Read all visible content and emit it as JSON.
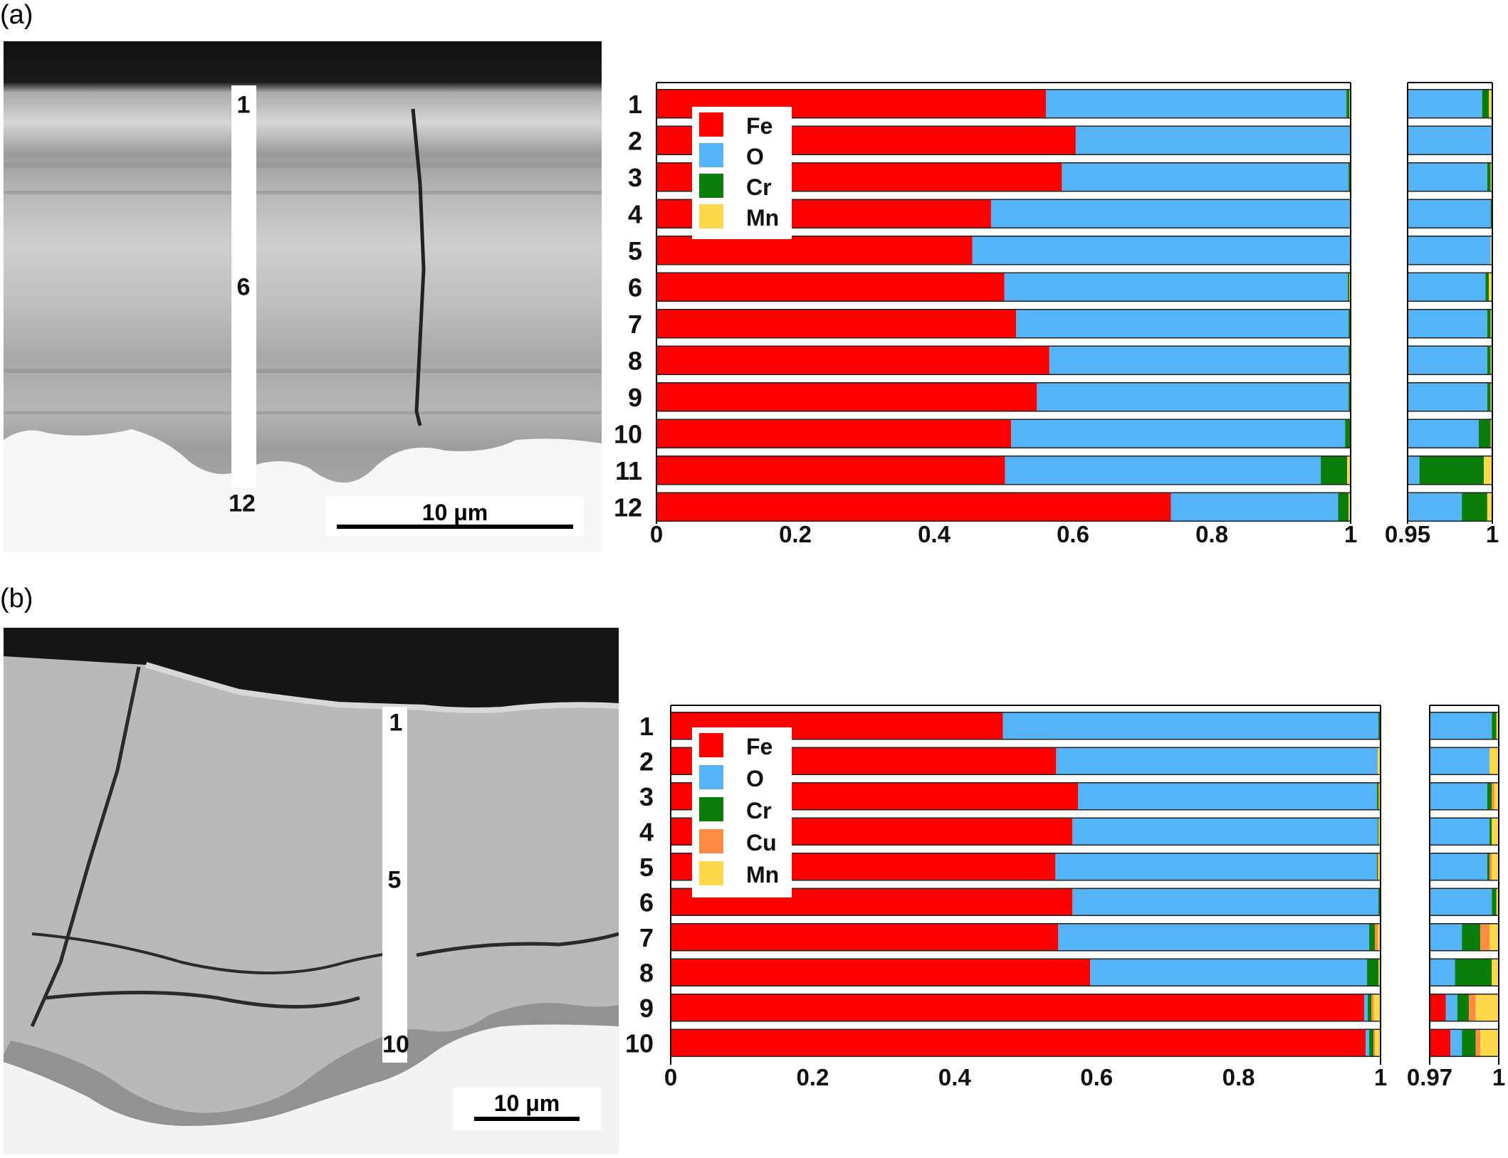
{
  "panels": {
    "a": {
      "label": "(a)",
      "strip_labels": [
        "1",
        "6",
        "12"
      ],
      "scale_label": "10 μm"
    },
    "b": {
      "label": "(b)",
      "strip_labels": [
        "1",
        "5",
        "10"
      ],
      "scale_label": "10 μm"
    }
  },
  "colors": {
    "Fe": "#ff0000",
    "O": "#55b3f7",
    "Cr": "#0a7d0a",
    "Cu": "#ff8c42",
    "Mn": "#fdd84a"
  },
  "chart_data": [
    {
      "type": "bar",
      "orientation": "horizontal",
      "stacked": true,
      "panel": "a",
      "categories": [
        "1",
        "2",
        "3",
        "4",
        "5",
        "6",
        "7",
        "8",
        "9",
        "10",
        "11",
        "12"
      ],
      "series": [
        {
          "name": "Fe",
          "values": [
            0.561,
            0.604,
            0.584,
            0.482,
            0.455,
            0.501,
            0.518,
            0.566,
            0.548,
            0.511,
            0.502,
            0.741
          ]
        },
        {
          "name": "O",
          "values": [
            0.433,
            0.396,
            0.413,
            0.517,
            0.544,
            0.495,
            0.479,
            0.431,
            0.449,
            0.481,
            0.455,
            0.241
          ]
        },
        {
          "name": "Cr",
          "values": [
            0.004,
            0.0,
            0.002,
            0.001,
            0.0,
            0.002,
            0.002,
            0.002,
            0.002,
            0.007,
            0.038,
            0.015
          ]
        },
        {
          "name": "Mn",
          "values": [
            0.002,
            0.0,
            0.001,
            0.0,
            0.001,
            0.002,
            0.001,
            0.001,
            0.001,
            0.001,
            0.005,
            0.003
          ]
        }
      ],
      "xlim": [
        0,
        1
      ],
      "xticks": [
        "0",
        "0.2",
        "0.4",
        "0.6",
        "0.8",
        "1"
      ],
      "inset": {
        "xlim": [
          0.95,
          1
        ],
        "xticks": [
          "0.95",
          "1"
        ]
      },
      "legend": {
        "placement": "top-left",
        "entries": [
          "Fe",
          "O",
          "Cr",
          "Mn"
        ]
      }
    },
    {
      "type": "bar",
      "orientation": "horizontal",
      "stacked": true,
      "panel": "b",
      "categories": [
        "1",
        "2",
        "3",
        "4",
        "5",
        "6",
        "7",
        "8",
        "9",
        "10"
      ],
      "series": [
        {
          "name": "Fe",
          "values": [
            0.468,
            0.543,
            0.574,
            0.566,
            0.542,
            0.566,
            0.546,
            0.591,
            0.977,
            0.979
          ]
        },
        {
          "name": "O",
          "values": [
            0.529,
            0.453,
            0.421,
            0.43,
            0.453,
            0.431,
            0.438,
            0.39,
            0.005,
            0.005
          ]
        },
        {
          "name": "Cr",
          "values": [
            0.002,
            0.0,
            0.002,
            0.001,
            0.001,
            0.002,
            0.008,
            0.016,
            0.005,
            0.006
          ]
        },
        {
          "name": "Cu",
          "values": [
            0.0,
            0.0,
            0.001,
            0.0,
            0.001,
            0.0,
            0.004,
            0.0,
            0.003,
            0.002
          ]
        },
        {
          "name": "Mn",
          "values": [
            0.001,
            0.004,
            0.002,
            0.003,
            0.003,
            0.001,
            0.004,
            0.003,
            0.01,
            0.008
          ]
        }
      ],
      "xlim": [
        0,
        1
      ],
      "xticks": [
        "0",
        "0.2",
        "0.4",
        "0.6",
        "0.8",
        "1"
      ],
      "inset": {
        "xlim": [
          0.97,
          1
        ],
        "xticks": [
          "0.97",
          "1"
        ]
      },
      "legend": {
        "placement": "top-left",
        "entries": [
          "Fe",
          "O",
          "Cr",
          "Cu",
          "Mn"
        ]
      }
    }
  ]
}
